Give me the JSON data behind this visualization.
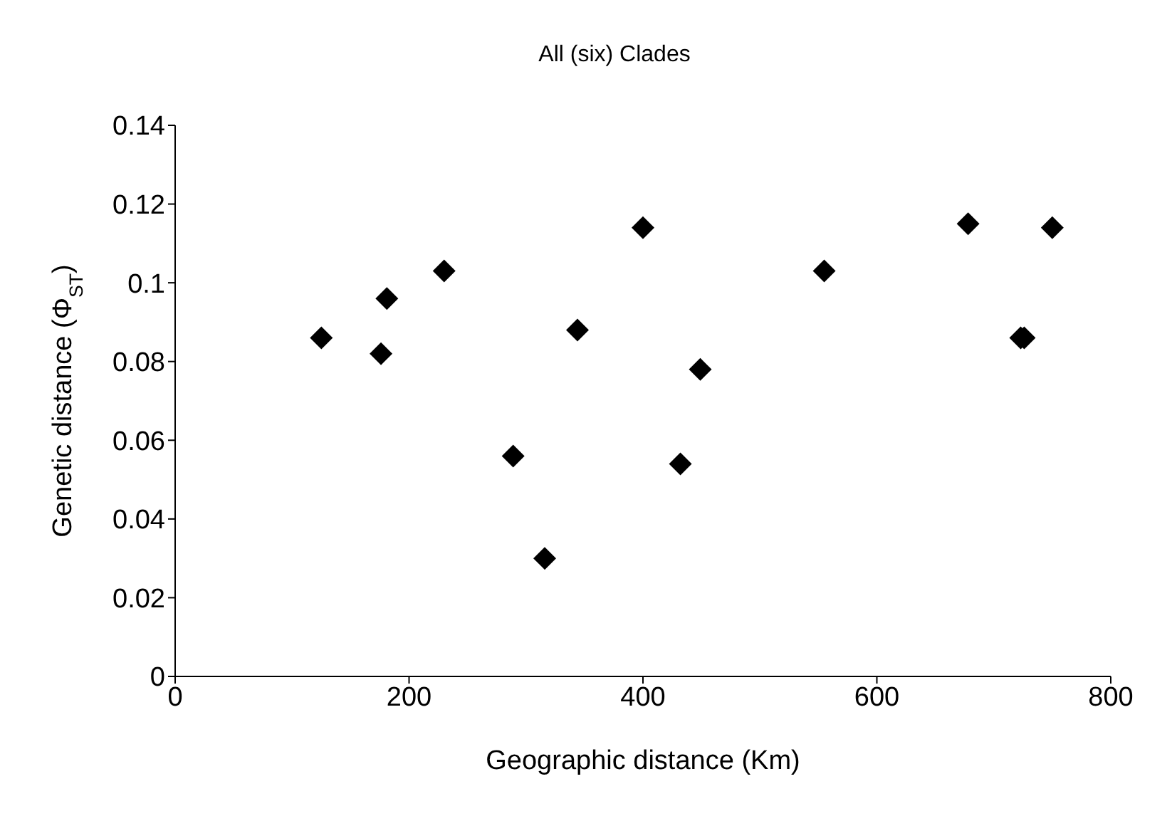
{
  "chart_data": {
    "type": "scatter",
    "title": "All (six) Clades",
    "xlabel": "Geographic distance (Km)",
    "ylabel": "Genetic distance (Φ$_{ST}$)",
    "x": [
      125,
      176,
      181,
      230,
      289,
      316,
      344,
      400,
      432,
      449,
      555,
      678,
      723,
      726,
      750
    ],
    "series": [
      {
        "color": "#000000",
        "values": [
          0.086,
          0.082,
          0.096,
          0.103,
          0.056,
          0.03,
          0.088,
          0.114,
          0.054,
          0.078,
          0.103,
          0.115,
          0.086,
          0.086,
          0.114
        ]
      }
    ],
    "xlim": [
      0,
      800
    ],
    "xticks": [
      0,
      200,
      400,
      600,
      800
    ],
    "ylim": [
      0,
      0.14
    ],
    "yticks": [
      0,
      0.02,
      0.04,
      0.06,
      0.08,
      0.1,
      0.12,
      0.14
    ],
    "grid": false,
    "legend": false,
    "marker": "diamond"
  }
}
